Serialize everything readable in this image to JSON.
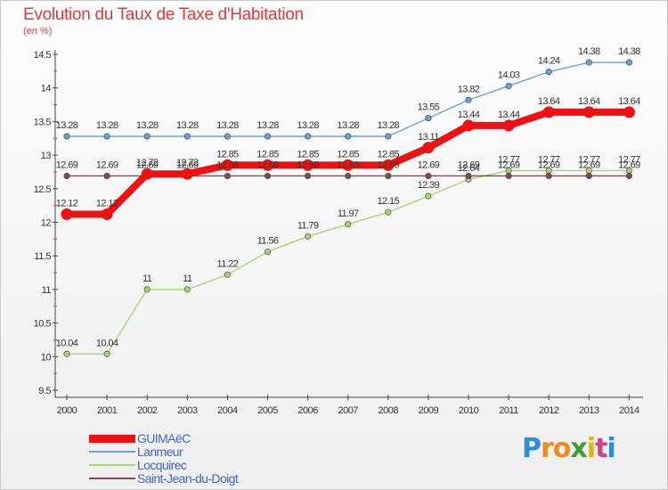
{
  "chart_data": {
    "type": "line",
    "title": "Evolution du Taux de Taxe d'Habitation",
    "unit_label": "(en %)",
    "categories": [
      "2000",
      "2001",
      "2002",
      "2003",
      "2004",
      "2005",
      "2006",
      "2007",
      "2008",
      "2009",
      "2010",
      "2011",
      "2012",
      "2013",
      "2014"
    ],
    "ylim": [
      9.5,
      14.5
    ],
    "yticks": [
      "9.5",
      "10",
      "10.5",
      "11",
      "11.5",
      "12",
      "12.5",
      "13",
      "13.5",
      "14",
      "14.5"
    ],
    "grid": false,
    "legend_position": "bottom-left",
    "series": [
      {
        "name": "GUIMAëC",
        "color": "#ee1111",
        "emphasis": true,
        "values": [
          12.12,
          12.12,
          12.72,
          12.72,
          12.85,
          12.85,
          12.85,
          12.85,
          12.85,
          13.11,
          13.44,
          13.44,
          13.64,
          13.64,
          13.64
        ],
        "labels": [
          "12.12",
          "12.12",
          "12.72",
          "12.72",
          "12.85",
          "12.85",
          "12.85",
          "12.85",
          "12.85",
          "13.11",
          "13.44",
          "13.44",
          "13.64",
          "13.64",
          "13.64"
        ]
      },
      {
        "name": "Lanmeur",
        "color": "#6aa3d5",
        "emphasis": false,
        "values": [
          13.28,
          13.28,
          13.28,
          13.28,
          13.28,
          13.28,
          13.28,
          13.28,
          13.28,
          13.55,
          13.82,
          14.03,
          14.24,
          14.38,
          14.38
        ],
        "labels": [
          "13.28",
          "13.28",
          "13.28",
          "13.28",
          "13.28",
          "13.28",
          "13.28",
          "13.28",
          "13.28",
          "13.55",
          "13.82",
          "14.03",
          "14.24",
          "14.38",
          "14.38"
        ]
      },
      {
        "name": "Locquirec",
        "color": "#a6d672",
        "emphasis": false,
        "values": [
          10.04,
          10.04,
          11,
          11,
          11.22,
          11.56,
          11.79,
          11.97,
          12.15,
          12.39,
          12.64,
          12.77,
          12.77,
          12.77,
          12.77
        ],
        "labels": [
          "10.04",
          "10.04",
          "11",
          "11",
          "11.22",
          "11.56",
          "11.79",
          "11.97",
          "12.15",
          "12.39",
          "12.64",
          "12.77",
          "12.77",
          "12.77",
          "12.77"
        ]
      },
      {
        "name": "Saint-Jean-du-Doigt",
        "color": "#8b4848",
        "emphasis": false,
        "values": [
          12.69,
          12.69,
          12.69,
          12.69,
          12.69,
          12.69,
          12.69,
          12.69,
          12.69,
          12.69,
          12.69,
          12.69,
          12.69,
          12.69,
          12.69
        ],
        "labels": [
          "12.69",
          "12.69",
          "12.69",
          "12.69",
          "12.69",
          "12.69",
          "12.69",
          "12.69",
          "12.69",
          "12.69",
          "12.69",
          "12.69",
          "12.69",
          "12.69",
          "12.69"
        ]
      }
    ]
  },
  "branding": {
    "logo_letters": [
      "P",
      "r",
      "o",
      "x",
      "i",
      "t",
      "i"
    ],
    "logo_colors": [
      "#2a8fd8",
      "#f08a1c",
      "#f08a1c",
      "#3d9a3d",
      "#e8b20c",
      "#d83a8c",
      "#2a8fd8"
    ]
  }
}
